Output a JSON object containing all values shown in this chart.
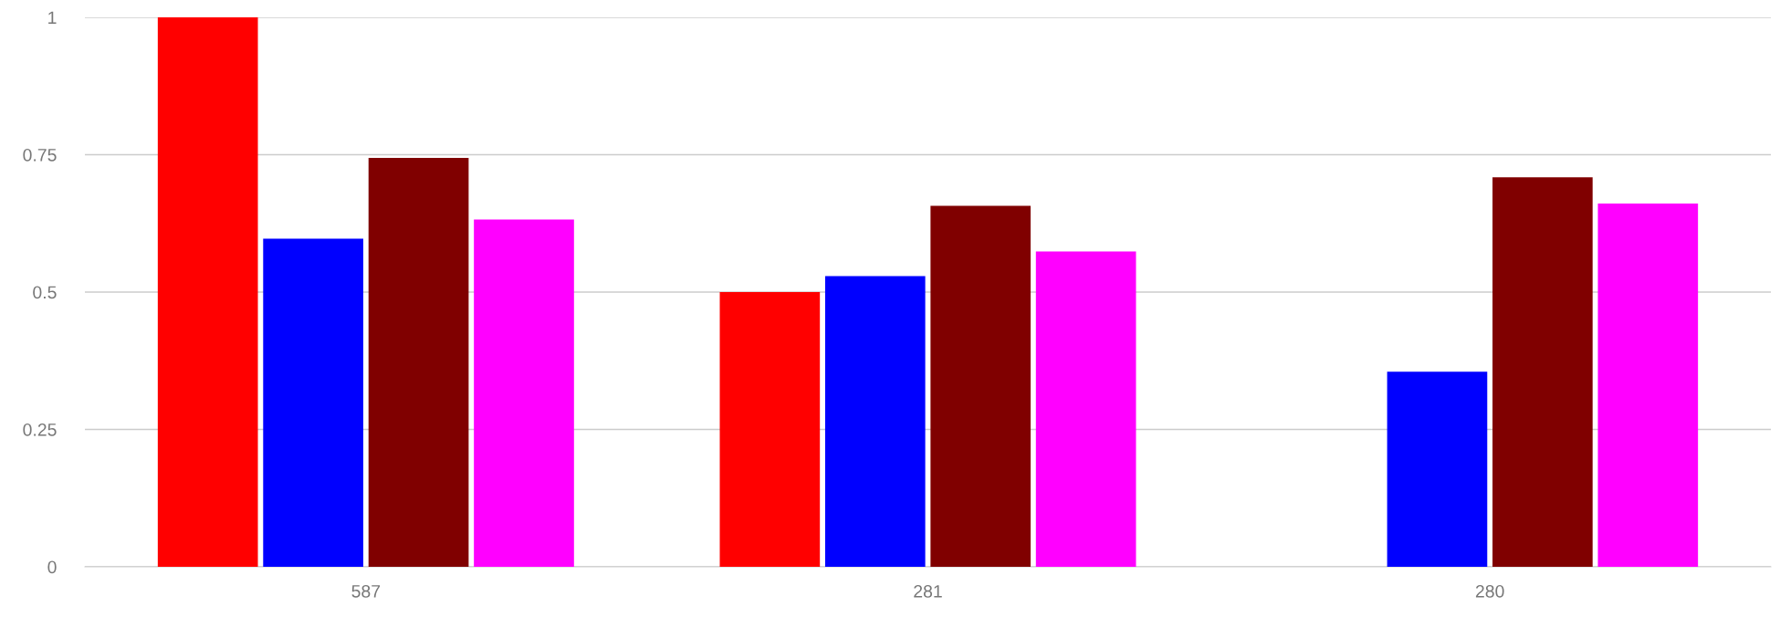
{
  "chart_data": {
    "type": "bar",
    "categories": [
      "587",
      "281",
      "280"
    ],
    "series": [
      {
        "color": "#ff0000",
        "values": [
          1,
          0.5,
          null
        ]
      },
      {
        "color": "#0000ff",
        "values": [
          0.597,
          0.529,
          0.355
        ]
      },
      {
        "color": "#800000",
        "values": [
          0.744,
          0.657,
          0.709
        ]
      },
      {
        "color": "#ff00ff",
        "values": [
          0.632,
          0.574,
          0.661
        ]
      }
    ],
    "ylim": [
      0,
      1
    ],
    "yticks": [
      0,
      0.25,
      0.5,
      0.75,
      1
    ],
    "grid": "y"
  }
}
